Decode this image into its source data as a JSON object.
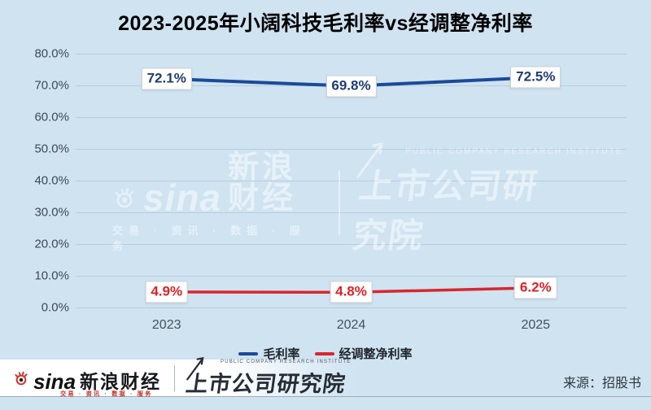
{
  "title": "2023-2025年小阔科技毛利率vs经调整净利率",
  "chart_data": {
    "type": "line",
    "categories": [
      "2023",
      "2024",
      "2025"
    ],
    "series": [
      {
        "name": "毛利率",
        "color": "#1b4a9b",
        "label_color": "#1f3c74",
        "values": [
          72.1,
          69.8,
          72.5
        ]
      },
      {
        "name": "经调整净利率",
        "color": "#d9262c",
        "label_color": "#e01f26",
        "values": [
          4.9,
          4.8,
          6.2
        ]
      }
    ],
    "point_labels": [
      [
        "72.1%",
        "69.8%",
        "72.5%"
      ],
      [
        "4.9%",
        "4.8%",
        "6.2%"
      ]
    ],
    "ylim": [
      0,
      80
    ],
    "ytick_step": 10,
    "ytick_labels": [
      "0.0%",
      "10.0%",
      "20.0%",
      "30.0%",
      "40.0%",
      "50.0%",
      "60.0%",
      "70.0%",
      "80.0%"
    ],
    "grid": true,
    "legend_position": "bottom"
  },
  "watermark": {
    "sina_logo_text": "sina",
    "brand": "新浪财经",
    "tagline": "交易 · 资讯 · 数据 · 服务",
    "institute": "上市公司研究院",
    "institute_en": "PUBLIC COMPANY RESEARCH INSTITUTE"
  },
  "footer": {
    "sina_logo_text": "sina",
    "brand": "新浪财经",
    "tagline": "交易 · 资讯 · 数据 · 服务",
    "institute": "上市公司研究院",
    "institute_en": "PUBLIC COMPANY RESEARCH INSTITUTE",
    "source": "来源：招股书"
  },
  "colors": {
    "background": "#cfe3f1",
    "gridline": "#8ea4b6",
    "axis_text": "#3e4a54",
    "series1": "#1b4a9b",
    "series2": "#d9262c",
    "label_box_border": "#c9ced6",
    "footer_line": "#9fabb5",
    "sina_eye_red": "#d5332a"
  }
}
